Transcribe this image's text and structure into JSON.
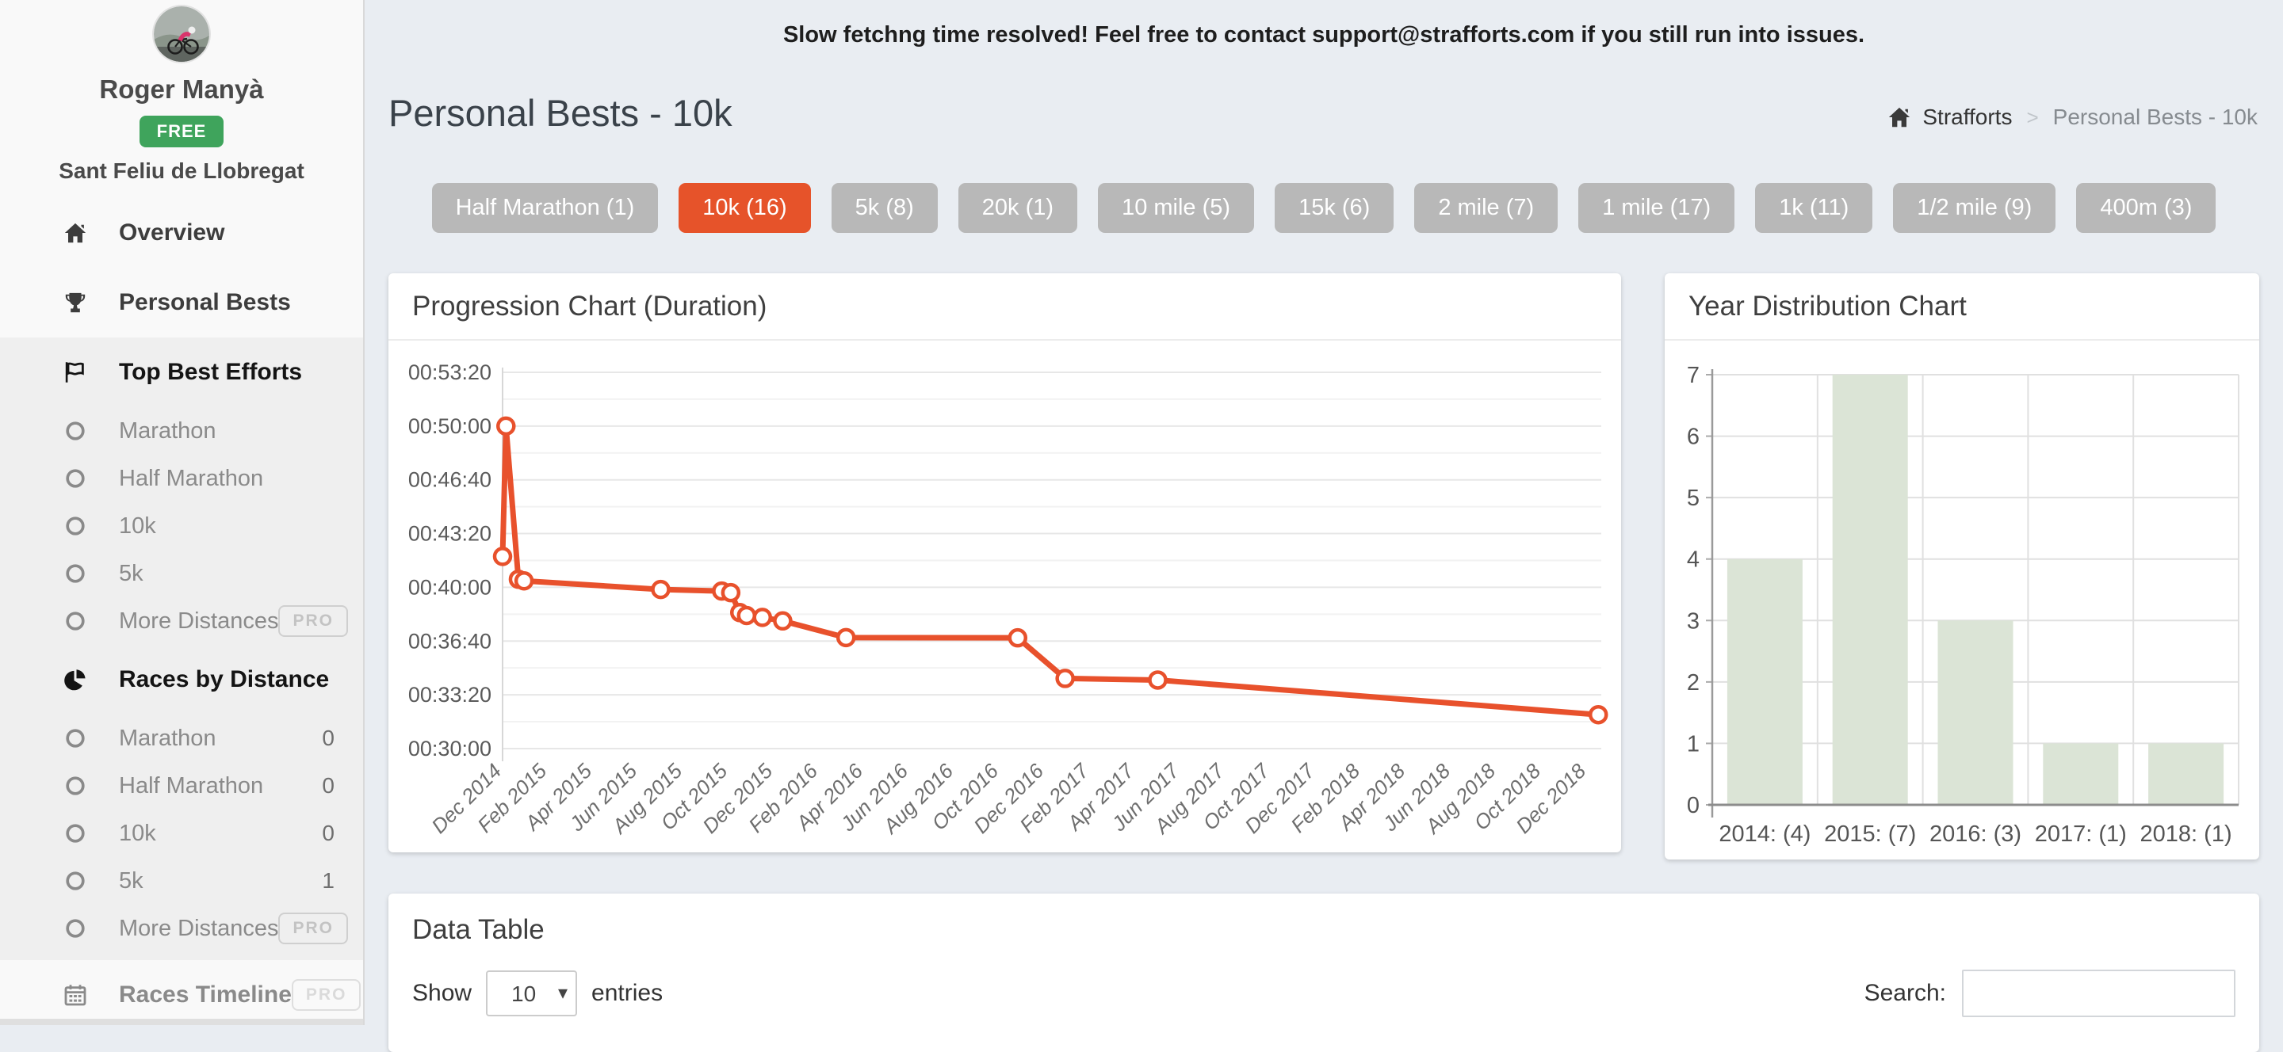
{
  "banner": {
    "text": "Slow fetchng time resolved! Feel free to contact support@strafforts.com if you still run into issues."
  },
  "sidebar": {
    "profile": {
      "name": "Roger Manyà",
      "badge": "FREE",
      "location": "Sant Feliu de Llobregat"
    },
    "sections": [
      {
        "bg": "light",
        "items": [
          {
            "label": "Overview",
            "icon": "home",
            "style": "main"
          },
          {
            "label": "Personal Bests",
            "icon": "trophy",
            "style": "main"
          }
        ]
      },
      {
        "bg": "gray",
        "items": [
          {
            "label": "Top Best Efforts",
            "icon": "flag",
            "style": "main",
            "emphasis": true
          },
          {
            "label": "Marathon",
            "icon": "circle",
            "style": "sub"
          },
          {
            "label": "Half Marathon",
            "icon": "circle",
            "style": "sub"
          },
          {
            "label": "10k",
            "icon": "circle",
            "style": "sub"
          },
          {
            "label": "5k",
            "icon": "circle",
            "style": "sub"
          },
          {
            "label": "More Distances",
            "icon": "circle",
            "style": "sub",
            "badge": "PRO"
          },
          {
            "label": "Races by Distance",
            "icon": "pie",
            "style": "main",
            "emphasis": true
          },
          {
            "label": "Marathon",
            "icon": "circle",
            "style": "sub",
            "count": "0"
          },
          {
            "label": "Half Marathon",
            "icon": "circle",
            "style": "sub",
            "count": "0"
          },
          {
            "label": "10k",
            "icon": "circle",
            "style": "sub",
            "count": "0"
          },
          {
            "label": "5k",
            "icon": "circle",
            "style": "sub",
            "count": "1"
          },
          {
            "label": "More Distances",
            "icon": "circle",
            "style": "sub",
            "badge": "PRO"
          }
        ]
      },
      {
        "bg": "light",
        "items": [
          {
            "label": "Races Timeline",
            "icon": "calendar",
            "style": "main",
            "muted": true,
            "badge": "PRO",
            "badge_muted": true
          }
        ]
      }
    ]
  },
  "header": {
    "title": "Personal Bests - 10k",
    "breadcrumb": {
      "root": "Strafforts",
      "separator": ">",
      "current": "Personal Bests - 10k"
    }
  },
  "distance_filters": {
    "buttons": [
      {
        "label": "Half Marathon (1)",
        "active": false
      },
      {
        "label": "10k (16)",
        "active": true
      },
      {
        "label": "5k (8)",
        "active": false
      },
      {
        "label": "20k (1)",
        "active": false
      },
      {
        "label": "10 mile (5)",
        "active": false
      },
      {
        "label": "15k (6)",
        "active": false
      },
      {
        "label": "2 mile (7)",
        "active": false
      },
      {
        "label": "1 mile (17)",
        "active": false
      },
      {
        "label": "1k (11)",
        "active": false
      },
      {
        "label": "1/2 mile (9)",
        "active": false
      },
      {
        "label": "400m (3)",
        "active": false
      }
    ]
  },
  "chart_data": [
    {
      "type": "line",
      "title": "Progression Chart (Duration)",
      "line_color": "#e8512c",
      "y_ticks": [
        "00:53:20",
        "00:50:00",
        "00:46:40",
        "00:43:20",
        "00:40:00",
        "00:36:40",
        "00:33:20",
        "00:30:00"
      ],
      "y_max_seconds": 3200,
      "y_min_seconds": 1800,
      "y_step_seconds": 200,
      "x_ticks": [
        "Dec 2014",
        "Feb 2015",
        "Apr 2015",
        "Jun 2015",
        "Aug 2015",
        "Oct 2015",
        "Dec 2015",
        "Feb 2016",
        "Apr 2016",
        "Jun 2016",
        "Aug 2016",
        "Oct 2016",
        "Dec 2016",
        "Feb 2017",
        "Apr 2017",
        "Jun 2017",
        "Aug 2017",
        "Oct 2017",
        "Dec 2017",
        "Feb 2018",
        "Apr 2018",
        "Jun 2018",
        "Aug 2018",
        "Oct 2018",
        "Dec 2018"
      ],
      "months_per_tick": 2,
      "points": [
        {
          "month": 0.0,
          "time": "00:41:55"
        },
        {
          "month": 0.15,
          "time": "00:50:00"
        },
        {
          "month": 0.7,
          "time": "00:40:30"
        },
        {
          "month": 0.95,
          "time": "00:40:24"
        },
        {
          "month": 7.0,
          "time": "00:39:52"
        },
        {
          "month": 9.7,
          "time": "00:39:46"
        },
        {
          "month": 10.1,
          "time": "00:39:40"
        },
        {
          "month": 10.5,
          "time": "00:38:26"
        },
        {
          "month": 10.8,
          "time": "00:38:15"
        },
        {
          "month": 11.5,
          "time": "00:38:08"
        },
        {
          "month": 12.4,
          "time": "00:37:55"
        },
        {
          "month": 15.2,
          "time": "00:36:53"
        },
        {
          "month": 22.8,
          "time": "00:36:52"
        },
        {
          "month": 24.9,
          "time": "00:34:21"
        },
        {
          "month": 29.0,
          "time": "00:34:15"
        },
        {
          "month": 48.5,
          "time": "00:32:06"
        }
      ]
    },
    {
      "type": "bar",
      "title": "Year Distribution Chart",
      "bar_color": "#dbe4d6",
      "categories": [
        "2014: (4)",
        "2015: (7)",
        "2016: (3)",
        "2017: (1)",
        "2018: (1)"
      ],
      "values": [
        4,
        7,
        3,
        1,
        1
      ],
      "y_ticks": [
        0,
        1,
        2,
        3,
        4,
        5,
        6,
        7
      ],
      "ylim": [
        0,
        7
      ]
    }
  ],
  "data_table": {
    "title": "Data Table",
    "show_label": "Show",
    "entries_label": "entries",
    "page_size": "10",
    "search_label": "Search:"
  }
}
